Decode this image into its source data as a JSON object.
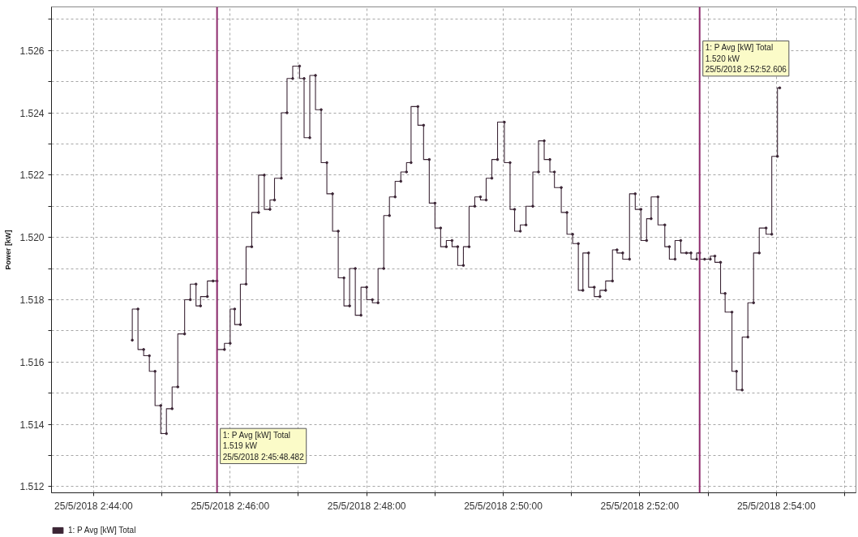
{
  "chart_data": {
    "type": "step",
    "ylabel": "Power [kW]",
    "x": [
      "2018-05-25T02:44:34",
      "2018-05-25T02:44:39",
      "2018-05-25T02:44:44",
      "2018-05-25T02:44:49",
      "2018-05-25T02:44:54",
      "2018-05-25T02:44:59",
      "2018-05-25T02:45:04",
      "2018-05-25T02:45:09",
      "2018-05-25T02:45:14",
      "2018-05-25T02:45:20",
      "2018-05-25T02:45:25",
      "2018-05-25T02:45:30",
      "2018-05-25T02:45:34",
      "2018-05-25T02:45:40",
      "2018-05-25T02:45:45",
      "2018-05-25T02:45:48.482",
      "2018-05-25T02:45:55",
      "2018-05-25T02:46:00",
      "2018-05-25T02:46:04",
      "2018-05-25T02:46:09",
      "2018-05-25T02:46:14",
      "2018-05-25T02:46:19",
      "2018-05-25T02:46:25",
      "2018-05-25T02:46:30",
      "2018-05-25T02:46:35",
      "2018-05-25T02:46:39",
      "2018-05-25T02:46:45",
      "2018-05-25T02:46:50",
      "2018-05-25T02:46:55",
      "2018-05-25T02:47:01",
      "2018-05-25T02:47:05",
      "2018-05-25T02:47:10",
      "2018-05-25T02:47:15",
      "2018-05-25T02:47:20",
      "2018-05-25T02:47:25",
      "2018-05-25T02:47:30",
      "2018-05-25T02:47:35",
      "2018-05-25T02:47:40",
      "2018-05-25T02:47:45",
      "2018-05-25T02:47:50",
      "2018-05-25T02:47:55",
      "2018-05-25T02:48:00",
      "2018-05-25T02:48:05",
      "2018-05-25T02:48:10",
      "2018-05-25T02:48:15",
      "2018-05-25T02:48:20",
      "2018-05-25T02:48:25",
      "2018-05-25T02:48:30",
      "2018-05-25T02:48:35",
      "2018-05-25T02:48:39",
      "2018-05-25T02:48:45",
      "2018-05-25T02:48:50",
      "2018-05-25T02:48:55",
      "2018-05-25T02:49:00",
      "2018-05-25T02:49:05",
      "2018-05-25T02:49:10",
      "2018-05-25T02:49:15",
      "2018-05-25T02:49:20",
      "2018-05-25T02:49:25",
      "2018-05-25T02:49:30",
      "2018-05-25T02:49:35",
      "2018-05-25T02:49:40",
      "2018-05-25T02:49:45",
      "2018-05-25T02:49:50",
      "2018-05-25T02:49:55",
      "2018-05-25T02:50:01",
      "2018-05-25T02:50:06",
      "2018-05-25T02:50:10",
      "2018-05-25T02:50:15",
      "2018-05-25T02:50:20",
      "2018-05-25T02:50:26",
      "2018-05-25T02:50:31",
      "2018-05-25T02:50:36",
      "2018-05-25T02:50:41",
      "2018-05-25T02:50:45",
      "2018-05-25T02:50:51",
      "2018-05-25T02:50:56",
      "2018-05-25T02:51:01",
      "2018-05-25T02:51:06",
      "2018-05-25T02:51:10",
      "2018-05-25T02:51:15",
      "2018-05-25T02:51:20",
      "2018-05-25T02:51:25",
      "2018-05-25T02:51:30",
      "2018-05-25T02:51:36",
      "2018-05-25T02:51:40",
      "2018-05-25T02:51:45",
      "2018-05-25T02:51:51",
      "2018-05-25T02:51:56",
      "2018-05-25T02:52:01",
      "2018-05-25T02:52:06",
      "2018-05-25T02:52:10",
      "2018-05-25T02:52:16",
      "2018-05-25T02:52:22",
      "2018-05-25T02:52:26",
      "2018-05-25T02:52:31",
      "2018-05-25T02:52:36",
      "2018-05-25T02:52:41",
      "2018-05-25T02:52:45",
      "2018-05-25T02:52:50",
      "2018-05-25T02:52:52.606",
      "2018-05-25T02:52:57",
      "2018-05-25T02:53:02",
      "2018-05-25T02:53:06",
      "2018-05-25T02:53:11",
      "2018-05-25T02:53:15",
      "2018-05-25T02:53:21",
      "2018-05-25T02:53:25",
      "2018-05-25T02:53:30",
      "2018-05-25T02:53:35",
      "2018-05-25T02:53:40",
      "2018-05-25T02:53:45",
      "2018-05-25T02:53:51",
      "2018-05-25T02:53:56",
      "2018-05-25T02:54:01",
      "2018-05-25T02:54:03"
    ],
    "series": [
      {
        "name": "1: P Avg [kW] Total",
        "color": "#3b2535",
        "values": [
          1.5167,
          1.5177,
          1.5164,
          1.5162,
          1.5157,
          1.5146,
          1.5137,
          1.5145,
          1.5152,
          1.5169,
          1.518,
          1.5185,
          1.5178,
          1.5181,
          1.5186,
          1.5186,
          1.5164,
          1.5166,
          1.5177,
          1.5172,
          1.5185,
          1.5197,
          1.5208,
          1.522,
          1.5209,
          1.5212,
          1.5219,
          1.524,
          1.5251,
          1.5255,
          1.5251,
          1.5232,
          1.5252,
          1.5241,
          1.5224,
          1.5214,
          1.5202,
          1.5187,
          1.5178,
          1.519,
          1.5175,
          1.5184,
          1.518,
          1.5179,
          1.519,
          1.5207,
          1.5213,
          1.5218,
          1.5221,
          1.5224,
          1.5242,
          1.5236,
          1.5225,
          1.5211,
          1.5203,
          1.5197,
          1.5199,
          1.5197,
          1.5191,
          1.5197,
          1.521,
          1.5213,
          1.5212,
          1.5219,
          1.5225,
          1.5237,
          1.5224,
          1.5209,
          1.5202,
          1.5204,
          1.521,
          1.5221,
          1.5231,
          1.5225,
          1.5221,
          1.5216,
          1.5208,
          1.5201,
          1.5198,
          1.5183,
          1.5195,
          1.5184,
          1.5181,
          1.5183,
          1.5186,
          1.5196,
          1.5195,
          1.5193,
          1.5214,
          1.5209,
          1.5199,
          1.5206,
          1.5213,
          1.5204,
          1.5197,
          1.5193,
          1.5199,
          1.5195,
          1.5195,
          1.5193,
          1.5195,
          1.5193,
          1.5193,
          1.5194,
          1.5192,
          1.5182,
          1.5176,
          1.5157,
          1.5151,
          1.5168,
          1.5179,
          1.5195,
          1.5203,
          1.5201,
          1.5226,
          1.5248
        ]
      }
    ],
    "xlim": [
      "2018-05-25T02:43:23",
      "2018-05-25T02:55:10"
    ],
    "xticks": [
      {
        "value": "2018-05-25T02:44:00",
        "label": "25/5/2018 2:44:00"
      },
      {
        "value": "2018-05-25T02:45:00",
        "label": null
      },
      {
        "value": "2018-05-25T02:46:00",
        "label": "25/5/2018 2:46:00"
      },
      {
        "value": "2018-05-25T02:47:00",
        "label": null
      },
      {
        "value": "2018-05-25T02:48:00",
        "label": "25/5/2018 2:48:00"
      },
      {
        "value": "2018-05-25T02:49:00",
        "label": null
      },
      {
        "value": "2018-05-25T02:50:00",
        "label": "25/5/2018 2:50:00"
      },
      {
        "value": "2018-05-25T02:51:00",
        "label": null
      },
      {
        "value": "2018-05-25T02:52:00",
        "label": "25/5/2018 2:52:00"
      },
      {
        "value": "2018-05-25T02:53:00",
        "label": null
      },
      {
        "value": "2018-05-25T02:54:00",
        "label": "25/5/2018 2:54:00"
      },
      {
        "value": "2018-05-25T02:55:00",
        "label": null
      }
    ],
    "ylim": [
      1.5118,
      1.5274
    ],
    "yticks": [
      1.512,
      {
        "value": 1.513,
        "label": null
      },
      1.514,
      {
        "value": 1.515,
        "label": null
      },
      1.516,
      {
        "value": 1.517,
        "label": null
      },
      1.518,
      {
        "value": 1.519,
        "label": null
      },
      {
        "value": 1.52,
        "label": "1.520"
      },
      {
        "value": 1.521,
        "label": null
      },
      1.522,
      {
        "value": 1.523,
        "label": null
      },
      1.524,
      {
        "value": 1.525,
        "label": null
      },
      1.526,
      {
        "value": 1.527,
        "label": null
      }
    ],
    "ref_lines": [
      {
        "axis": "x",
        "value": "2018-05-25T02:45:48.482",
        "label": "1: P Avg [kW] Total\n1.519 kW\n25/5/2018 2:45:48.482",
        "color": "#8e2c6e"
      },
      {
        "axis": "x",
        "value": "2018-05-25T02:52:52.606",
        "label": "1: P Avg [kW] Total\n1.520 kW\n25/5/2018 2:52:52.606",
        "color": "#8e2c6e"
      }
    ],
    "grid": true,
    "legend": "bottom",
    "marker": "circle",
    "line_style": "solid"
  }
}
